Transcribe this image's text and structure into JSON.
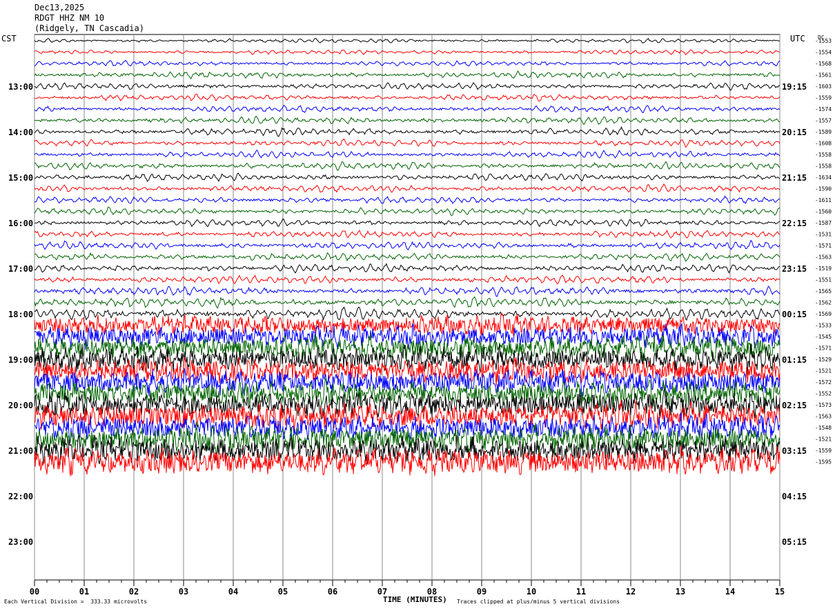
{
  "header": {
    "date": "Dec13,2025",
    "station": "RDGT HHZ NM 10",
    "location": "(Ridgely, TN Cascadia)"
  },
  "left_zone_label": "CST",
  "right_zone_label": "UTC",
  "dc_label": "DC",
  "footer": {
    "xlabel": "TIME (MINUTES)",
    "scale_note": "Each Vertical Division =  333.33 microvolts",
    "clip_note": "Traces clipped at plus/minus 5 vertical divisions"
  },
  "colors": [
    "#000000",
    "#ff0000",
    "#0000ff",
    "#006400"
  ],
  "chart_data": {
    "type": "line",
    "title": "RDGT HHZ NM 10",
    "xlabel": "TIME (MINUTES)",
    "xlim": [
      0,
      15
    ],
    "x_ticks": [
      "00",
      "01",
      "02",
      "03",
      "04",
      "05",
      "06",
      "07",
      "08",
      "09",
      "10",
      "11",
      "12",
      "13",
      "14",
      "15"
    ],
    "left_hour_labels": [
      "13:00",
      "14:00",
      "15:00",
      "16:00",
      "17:00",
      "18:00",
      "19:00",
      "20:00",
      "21:00",
      "22:00",
      "23:00"
    ],
    "right_hour_labels": [
      "19:15",
      "20:15",
      "21:15",
      "22:15",
      "23:15",
      "00:15",
      "01:15",
      "02:15",
      "03:15",
      "04:15",
      "05:15"
    ],
    "dc_offsets": [
      -1553,
      -1554,
      -1568,
      -1561,
      -1603,
      -1559,
      -1574,
      -1557,
      -1589,
      -1608,
      -1558,
      -1558,
      -1634,
      -1590,
      -1611,
      -1560,
      -1587,
      -1531,
      -1571,
      -1563,
      -1519,
      -1551,
      -1565,
      -1562,
      -1569,
      -1533,
      -1545,
      -1571,
      -1529,
      -1521,
      -1572,
      -1552,
      -1573,
      -1563,
      -1548,
      -1521,
      -1559,
      -1595
    ],
    "trace_amplitude": [
      1.2,
      1.3,
      1.5,
      1.8,
      1.8,
      1.8,
      1.9,
      2.0,
      2.0,
      1.9,
      1.9,
      2.0,
      2.0,
      2.0,
      1.9,
      1.9,
      2.0,
      2.0,
      2.1,
      2.1,
      2.2,
      2.3,
      2.5,
      2.8,
      3.2,
      3.6,
      4.0,
      4.3,
      4.5,
      4.5,
      4.5,
      4.6,
      4.7,
      4.7,
      4.8,
      4.8,
      5.0,
      5.0
    ]
  }
}
